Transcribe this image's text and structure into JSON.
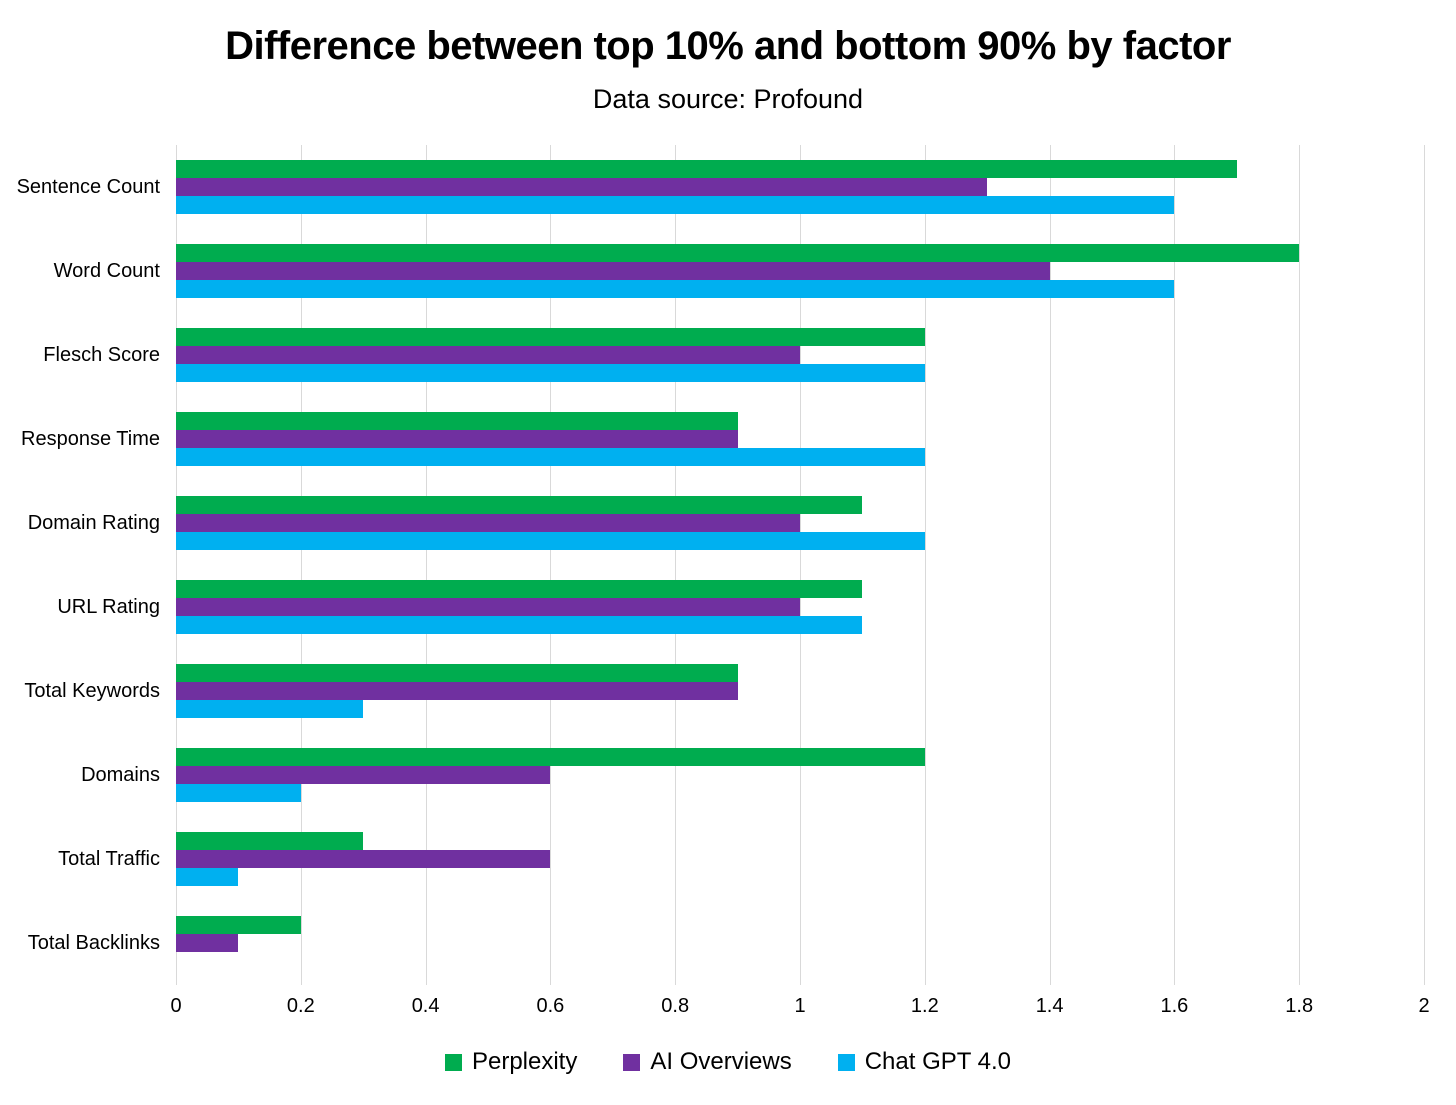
{
  "chart": {
    "title": "Difference between top 10% and bottom 90% by factor",
    "subtitle": "Data source: Profound"
  },
  "chart_data": {
    "type": "bar",
    "orientation": "horizontal",
    "title": "Difference between top 10% and bottom 90% by factor",
    "subtitle": "Data source: Profound",
    "xlabel": "",
    "ylabel": "",
    "xlim": [
      0,
      2
    ],
    "x_tick_labels": [
      "0",
      "0.2",
      "0.4",
      "0.6",
      "0.8",
      "1",
      "1.2",
      "1.4",
      "1.6",
      "1.8",
      "2"
    ],
    "x_tick_values": [
      0,
      0.2,
      0.4,
      0.6,
      0.8,
      1,
      1.2,
      1.4,
      1.6,
      1.8,
      2
    ],
    "grid": true,
    "gridline_color": "#d9d9d9",
    "legend_position": "bottom",
    "categories": [
      "Sentence Count",
      "Word Count",
      "Flesch Score",
      "Response Time",
      "Domain Rating",
      "URL Rating",
      "Total Keywords",
      "Domains",
      "Total Traffic",
      "Total Backlinks"
    ],
    "series": [
      {
        "name": "Perplexity",
        "color": "#00ac4f",
        "values": [
          1.7,
          1.8,
          1.2,
          0.9,
          1.1,
          1.1,
          0.9,
          1.2,
          0.3,
          0.2
        ]
      },
      {
        "name": "AI Overviews",
        "color": "#7030a0",
        "values": [
          1.3,
          1.4,
          1.0,
          0.9,
          1.0,
          1.0,
          0.9,
          0.6,
          0.6,
          0.1
        ]
      },
      {
        "name": "Chat GPT 4.0",
        "color": "#00b0f0",
        "values": [
          1.6,
          1.6,
          1.2,
          1.2,
          1.2,
          1.1,
          0.3,
          0.2,
          0.1,
          0
        ]
      }
    ]
  }
}
